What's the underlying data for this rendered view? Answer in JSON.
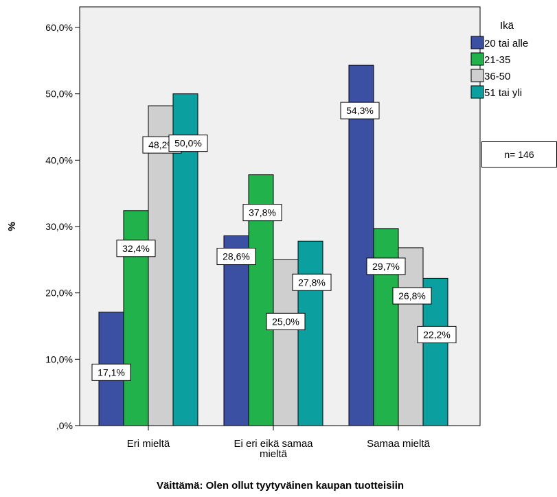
{
  "chart_data": {
    "type": "bar",
    "xlabel": "Väittämä: Olen ollut tyytyväinen kaupan tuotteisiin",
    "ylabel": "%",
    "ylim": [
      0,
      60
    ],
    "yticks": [
      0,
      10,
      20,
      30,
      40,
      50,
      60
    ],
    "ytick_labels": [
      ",0%",
      "10,0%",
      "20,0%",
      "30,0%",
      "40,0%",
      "50,0%",
      "60,0%"
    ],
    "categories": [
      {
        "lines": [
          "Eri mieltä"
        ]
      },
      {
        "lines": [
          "Ei eri eikä samaa",
          "mieltä"
        ]
      },
      {
        "lines": [
          "Samaa mieltä"
        ]
      }
    ],
    "legend": {
      "title": "Ikä",
      "position": "right"
    },
    "series": [
      {
        "name": "20 tai alle",
        "color": "#3b4fa3",
        "values": [
          17.1,
          28.6,
          54.3
        ],
        "labels": [
          "17,1%",
          "28,6%",
          "54,3%"
        ]
      },
      {
        "name": "21-35",
        "color": "#21b24b",
        "values": [
          32.4,
          37.8,
          29.7
        ],
        "labels": [
          "32,4%",
          "37,8%",
          "29,7%"
        ]
      },
      {
        "name": "36-50",
        "color": "#cfcfcf",
        "values": [
          48.2,
          25.0,
          26.8
        ],
        "labels": [
          "48,2%",
          "25,0%",
          "26,8%"
        ]
      },
      {
        "name": "51 tai yli",
        "color": "#0b9fa0",
        "values": [
          50.0,
          27.8,
          22.2
        ],
        "labels": [
          "50,0%",
          "27,8%",
          "22,2%"
        ]
      }
    ],
    "annotation": "n= 146",
    "grid": false
  }
}
